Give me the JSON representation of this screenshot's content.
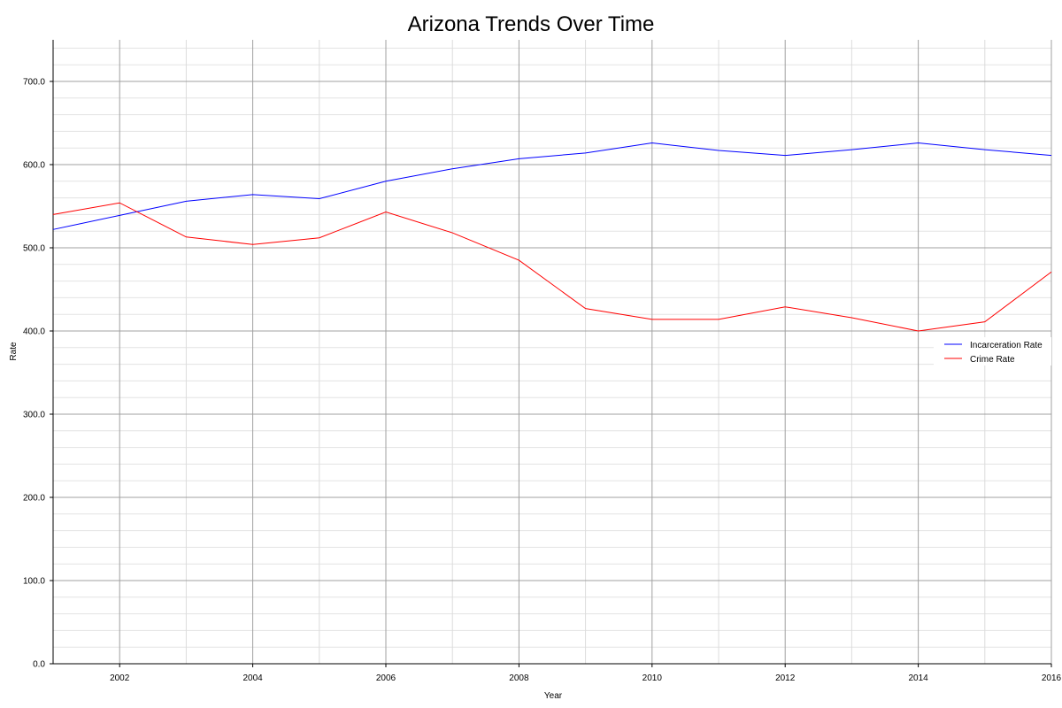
{
  "chart_data": {
    "type": "line",
    "title": "Arizona Trends Over Time",
    "xlabel": "Year",
    "ylabel": "Rate",
    "xlim": [
      2001,
      2016
    ],
    "ylim": [
      0,
      750
    ],
    "x": [
      2001,
      2002,
      2003,
      2004,
      2005,
      2006,
      2007,
      2008,
      2009,
      2010,
      2011,
      2012,
      2013,
      2014,
      2015,
      2016
    ],
    "x_ticks": [
      "2002",
      "2004",
      "2006",
      "2008",
      "2010",
      "2012",
      "2014",
      "2016"
    ],
    "y_ticks": [
      "0.0",
      "100.0",
      "200.0",
      "300.0",
      "400.0",
      "500.0",
      "600.0",
      "700.0"
    ],
    "grid": true,
    "legend_position": "right",
    "series": [
      {
        "name": "Incarceration Rate",
        "color": "#0000ff",
        "values": [
          522,
          539,
          556,
          564,
          559,
          580,
          595,
          607,
          614,
          626,
          617,
          611,
          618,
          626,
          618,
          611
        ]
      },
      {
        "name": "Crime Rate",
        "color": "#ff0000",
        "values": [
          540,
          554,
          513,
          504,
          512,
          543,
          518,
          485,
          427,
          414,
          414,
          429,
          416,
          400,
          411,
          471
        ]
      }
    ]
  }
}
